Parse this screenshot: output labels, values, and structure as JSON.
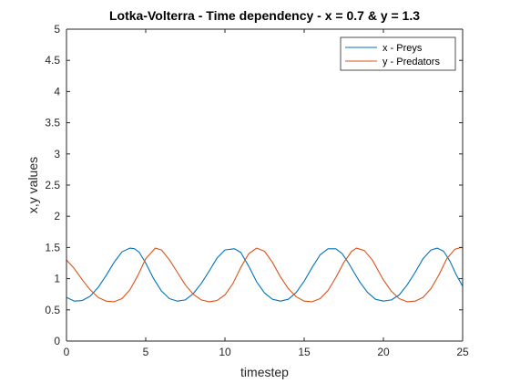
{
  "chart_data": {
    "type": "line",
    "title": "Lotka-Volterra - Time dependency - x = 0.7 & y = 1.3",
    "xlabel": "timestep",
    "ylabel": "x,y values",
    "xlim": [
      0,
      25
    ],
    "ylim": [
      0,
      5
    ],
    "xticks": [
      0,
      5,
      10,
      15,
      20,
      25
    ],
    "yticks": [
      0,
      0.5,
      1,
      1.5,
      2,
      2.5,
      3,
      3.5,
      4,
      4.5,
      5
    ],
    "xtick_labels": [
      "0",
      "5",
      "10",
      "15",
      "20",
      "25"
    ],
    "ytick_labels": [
      "0",
      "0.5",
      "1",
      "1.5",
      "2",
      "2.5",
      "3",
      "3.5",
      "4",
      "4.5",
      "5"
    ],
    "grid": false,
    "legend_position": "top-right",
    "series": [
      {
        "name": "x - Preys",
        "color": "#0072BD",
        "x": [
          0,
          0.5,
          1,
          1.5,
          2,
          2.5,
          3,
          3.5,
          4,
          4.3,
          4.6,
          5,
          5.5,
          6,
          6.5,
          7,
          7.5,
          8,
          8.5,
          9,
          9.5,
          10,
          10.6,
          11,
          11.5,
          12,
          12.5,
          13,
          13.5,
          14,
          14.5,
          15,
          15.5,
          16,
          16.5,
          17,
          17.4,
          17.8,
          18.5,
          19,
          19.5,
          20,
          20.5,
          21,
          21.5,
          22,
          22.5,
          23,
          23.4,
          23.8,
          24.2,
          24.6,
          25
        ],
        "y": [
          0.7,
          0.64,
          0.65,
          0.72,
          0.86,
          1.05,
          1.26,
          1.43,
          1.49,
          1.48,
          1.42,
          1.25,
          1.0,
          0.8,
          0.68,
          0.64,
          0.66,
          0.76,
          0.92,
          1.12,
          1.33,
          1.46,
          1.48,
          1.42,
          1.2,
          0.95,
          0.77,
          0.67,
          0.64,
          0.67,
          0.78,
          0.96,
          1.18,
          1.38,
          1.48,
          1.48,
          1.4,
          1.25,
          0.95,
          0.78,
          0.67,
          0.64,
          0.66,
          0.74,
          0.9,
          1.1,
          1.32,
          1.46,
          1.49,
          1.44,
          1.28,
          1.06,
          0.88
        ]
      },
      {
        "name": "y - Predators",
        "color": "#D95319",
        "x": [
          0,
          0.5,
          1,
          1.5,
          2,
          2.5,
          3,
          3.5,
          4,
          4.5,
          5,
          5.6,
          6,
          6.5,
          7,
          7.5,
          8,
          8.5,
          9,
          9.5,
          10,
          10.5,
          11,
          11.5,
          12,
          12.5,
          13,
          13.5,
          14,
          14.5,
          15,
          15.5,
          16,
          16.5,
          17,
          17.5,
          18,
          18.3,
          18.8,
          19.3,
          20,
          20.5,
          21,
          21.5,
          22,
          22.5,
          23,
          23.5,
          24,
          24.5,
          24.9,
          25
        ],
        "y": [
          1.3,
          1.16,
          0.98,
          0.82,
          0.7,
          0.64,
          0.63,
          0.68,
          0.82,
          1.05,
          1.32,
          1.49,
          1.46,
          1.3,
          1.1,
          0.9,
          0.75,
          0.66,
          0.63,
          0.65,
          0.74,
          0.92,
          1.18,
          1.4,
          1.49,
          1.44,
          1.26,
          1.03,
          0.84,
          0.71,
          0.64,
          0.63,
          0.68,
          0.81,
          1.02,
          1.26,
          1.44,
          1.49,
          1.45,
          1.3,
          0.98,
          0.8,
          0.68,
          0.63,
          0.64,
          0.7,
          0.84,
          1.06,
          1.32,
          1.47,
          1.5,
          1.49
        ]
      }
    ]
  }
}
